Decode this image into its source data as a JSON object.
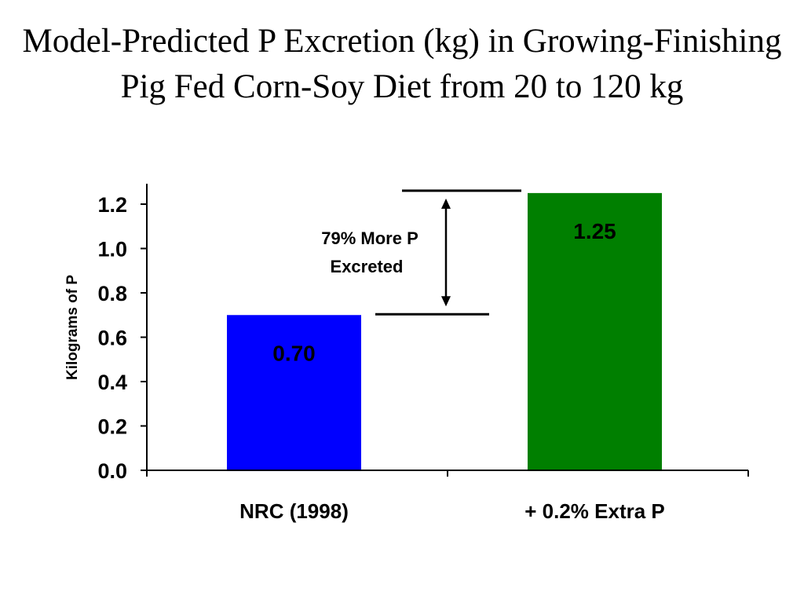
{
  "title": "Model-Predicted P Excretion (kg) in Growing-Finishing Pig Fed Corn-Soy Diet from 20 to 120 kg",
  "chart_data": {
    "type": "bar",
    "title": "Model-Predicted P Excretion (kg) in Growing-Finishing Pig Fed Corn-Soy Diet from 20 to 120 kg",
    "xlabel": "",
    "ylabel": "Kilograms of P",
    "categories": [
      "NRC (1998)",
      "+ 0.2% Extra P"
    ],
    "values": [
      0.7,
      1.25
    ],
    "value_labels": [
      "0.70",
      "1.25"
    ],
    "bar_colors": [
      "#0000ff",
      "#007f00"
    ],
    "yticks": [
      "0.0",
      "0.2",
      "0.4",
      "0.6",
      "0.8",
      "1.0",
      "1.2"
    ],
    "ylim": [
      0,
      1.2
    ],
    "grid": false,
    "legend": "none",
    "annotation": {
      "lines": [
        "79% More P",
        "Excreted"
      ]
    }
  }
}
